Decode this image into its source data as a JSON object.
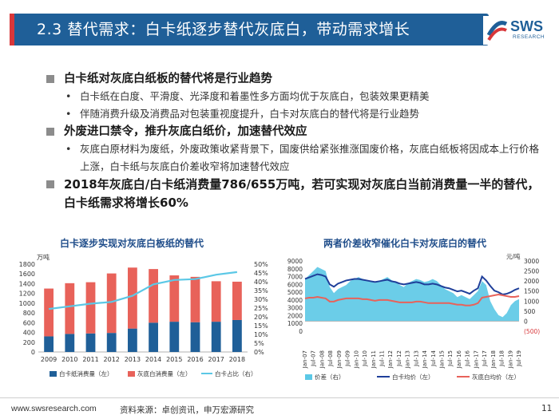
{
  "header": {
    "title": "2.3 替代需求：白卡纸逐步替代灰底白，带动需求增长",
    "logo_text": "SWS",
    "logo_sub": "RESEARCH",
    "bar_color": "#1f5f98",
    "accent_color": "#d8373a"
  },
  "bullets": [
    {
      "level": 1,
      "text": "白卡纸对灰底白纸板的替代将是行业趋势"
    },
    {
      "level": 2,
      "text": "白卡纸在白度、平滑度、光泽度和着墨性多方面均优于灰底白，包装效果更精美"
    },
    {
      "level": 2,
      "text": "伴随消费升级及消费品对包装重视度提升，白卡对灰底白的替代将是行业趋势"
    },
    {
      "level": 1,
      "text": "外废进口禁令，推升灰底白纸价，加速替代效应"
    },
    {
      "level": 2,
      "text": "灰底白原材料为废纸，外废政策收紧背景下，国废供给紧张推涨国废价格，灰底白纸板将因成本上行价格上涨，白卡纸与灰底白价差收窄将加速替代效应"
    },
    {
      "level": 1,
      "text": "2018年灰底白/白卡纸消费量786/655万吨，若可实现对灰底白当前消费量一半的替代，白卡纸需求将增长60%"
    }
  ],
  "chart_data": [
    {
      "type": "bar",
      "title": "白卡逐步实现对灰底白板纸的替代",
      "unit_left": "万吨",
      "categories": [
        "2009",
        "2010",
        "2011",
        "2012",
        "2013",
        "2014",
        "2015",
        "2016",
        "2017",
        "2018"
      ],
      "ylim_left": [
        0,
        1800
      ],
      "yticks_left": [
        "0",
        "200",
        "400",
        "600",
        "800",
        "1000",
        "1200",
        "1400",
        "1600",
        "1800"
      ],
      "ylim_right": [
        0,
        50
      ],
      "yticks_right": [
        "0%",
        "5%",
        "10%",
        "15%",
        "20%",
        "25%",
        "30%",
        "35%",
        "40%",
        "45%",
        "50%"
      ],
      "series": [
        {
          "name": "白卡纸消费量（左）",
          "color": "#1f5f98",
          "values": [
            320,
            370,
            380,
            390,
            480,
            600,
            620,
            610,
            620,
            655
          ]
        },
        {
          "name": "灰底白消费量（左）",
          "color": "#e8625a",
          "values": [
            980,
            1040,
            1050,
            1220,
            1250,
            1100,
            950,
            930,
            830,
            786
          ]
        },
        {
          "name": "白卡占比（右）",
          "color": "#5bc8e6",
          "values": [
            24.5,
            26.0,
            27.5,
            28.5,
            32.0,
            38.5,
            41.0,
            41.5,
            44.0,
            45.5
          ]
        }
      ],
      "legend": "bottom"
    },
    {
      "type": "line",
      "title": "两者价差收窄催化白卡对灰底白的替代",
      "unit_right": "元/吨",
      "ylim_left": [
        0,
        9000
      ],
      "yticks_left": [
        "0",
        "1000",
        "2000",
        "3000",
        "4000",
        "5000",
        "6000",
        "7000",
        "8000",
        "9000"
      ],
      "ylim_right": [
        -500,
        3000
      ],
      "yticks_right": [
        "(500)",
        "0",
        "500",
        "1000",
        "1500",
        "2000",
        "2500",
        "3000"
      ],
      "x_labels": [
        "Jan-07",
        "Jul-07",
        "Jan-08",
        "Jul-08",
        "Jan-09",
        "Jul-09",
        "Jan-10",
        "Jul-10",
        "Jan-11",
        "Jul-11",
        "Jan-12",
        "Jul-12",
        "Jan-13",
        "Jul-13",
        "Jan-14",
        "Jul-14",
        "Jan-15",
        "Jul-15",
        "Jan-16",
        "Jul-16",
        "Jan-17",
        "Jul-17",
        "Jan-18",
        "Jul-18",
        "Jan-19",
        "Jul-19"
      ],
      "series": [
        {
          "name": "价差（右）",
          "color": "#5bc8e6",
          "values": [
            2100,
            2300,
            2500,
            2700,
            2600,
            2500,
            1700,
            1400,
            1600,
            1700,
            1800,
            2000,
            2100,
            2200,
            2100,
            2050,
            2000,
            1900,
            2000,
            2100,
            2200,
            2050,
            1950,
            1800,
            1700,
            1900,
            2000,
            2100,
            2050,
            1950,
            2000,
            2100,
            2000,
            1800,
            1600,
            1500,
            1400,
            1200,
            1300,
            1200,
            1100,
            1300,
            1500,
            2000,
            1800,
            1000,
            600,
            300,
            200,
            400,
            800,
            1000,
            1100
          ]
        },
        {
          "name": "白卡均价（左）",
          "color": "#1f3f9a",
          "values": [
            6700,
            6900,
            7100,
            7300,
            7200,
            7000,
            6000,
            5700,
            6100,
            6300,
            6500,
            6600,
            6700,
            6700,
            6600,
            6500,
            6400,
            6300,
            6400,
            6500,
            6600,
            6400,
            6300,
            6100,
            6000,
            6100,
            6200,
            6300,
            6200,
            6000,
            6000,
            6100,
            6000,
            5800,
            5600,
            5500,
            5300,
            5100,
            5200,
            5000,
            4800,
            5200,
            5500,
            7000,
            6500,
            5800,
            5200,
            5000,
            4700,
            4800,
            5000,
            5300,
            5500
          ]
        },
        {
          "name": "灰底白均价（左）",
          "color": "#e8625a",
          "values": [
            4200,
            4300,
            4300,
            4400,
            4300,
            4200,
            3800,
            3800,
            4000,
            4100,
            4200,
            4200,
            4200,
            4200,
            4100,
            4100,
            4000,
            3900,
            4000,
            4000,
            4000,
            3900,
            3800,
            3700,
            3700,
            3700,
            3700,
            3800,
            3800,
            3700,
            3600,
            3600,
            3600,
            3600,
            3600,
            3600,
            3500,
            3400,
            3400,
            3300,
            3300,
            3400,
            3600,
            4300,
            4400,
            4500,
            4600,
            4700,
            4600,
            4500,
            4400,
            4400,
            4500
          ]
        }
      ],
      "legend": "bottom"
    }
  ],
  "footer": {
    "site": "www.swsresearch.com",
    "source": "资料来源：卓创资讯，申万宏源研究",
    "page": "11"
  }
}
